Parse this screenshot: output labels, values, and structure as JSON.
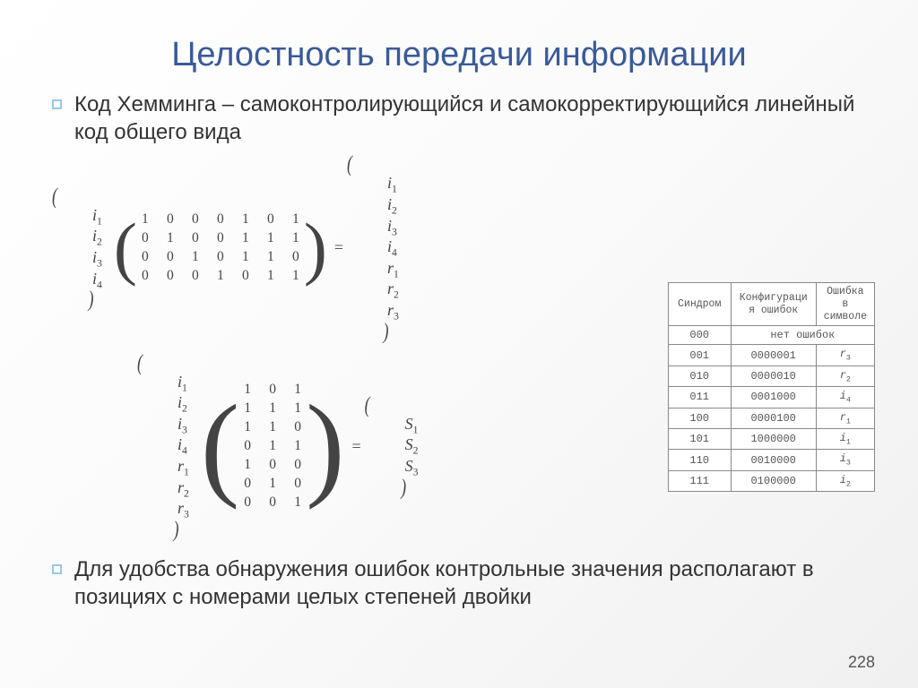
{
  "title": "Целостность передачи информации",
  "bullet1": "Код Хемминга – самоконтролирующийся и самокорректирующийся линейный код общего вида",
  "bullet2": "Для удобства обнаружения ошибок контрольные значения располагают в позициях с номерами целых степеней двойки",
  "page_number": "228",
  "eq1": {
    "left_vec": [
      "i₁",
      "i₂",
      "i₃",
      "i₄"
    ],
    "matrix": {
      "rows": 4,
      "cols": 7,
      "cells": [
        "1",
        "0",
        "0",
        "0",
        "1",
        "0",
        "1",
        "0",
        "1",
        "0",
        "0",
        "1",
        "1",
        "1",
        "0",
        "0",
        "1",
        "0",
        "1",
        "1",
        "0",
        "0",
        "0",
        "0",
        "1",
        "0",
        "1",
        "1"
      ]
    },
    "right_vec": [
      "i₁",
      "i₂",
      "i₃",
      "i₄",
      "r₁",
      "r₂",
      "r₃"
    ]
  },
  "eq2": {
    "left_vec": [
      "i₁",
      "i₂",
      "i₃",
      "i₄",
      "r₁",
      "r₂",
      "r₃"
    ],
    "matrix": {
      "rows": 7,
      "cols": 3,
      "cells": [
        "1",
        "0",
        "1",
        "1",
        "1",
        "1",
        "1",
        "1",
        "0",
        "0",
        "1",
        "1",
        "1",
        "0",
        "0",
        "0",
        "1",
        "0",
        "0",
        "0",
        "1"
      ]
    },
    "right_vec": [
      "S₁",
      "S₂",
      "S₃"
    ]
  },
  "table": {
    "headers": [
      "Синдром",
      "Конфигураци\nя ошибок",
      "Ошибка\nв\nсимволе"
    ],
    "no_err_row": {
      "s": "000",
      "msg": "нет ошибок"
    },
    "rows": [
      {
        "s": "001",
        "cfg": "0000001",
        "sym": "r",
        "sub": "3"
      },
      {
        "s": "010",
        "cfg": "0000010",
        "sym": "r",
        "sub": "2"
      },
      {
        "s": "011",
        "cfg": "0001000",
        "sym": "i",
        "sub": "4"
      },
      {
        "s": "100",
        "cfg": "0000100",
        "sym": "r",
        "sub": "1"
      },
      {
        "s": "101",
        "cfg": "1000000",
        "sym": "i",
        "sub": "1"
      },
      {
        "s": "110",
        "cfg": "0010000",
        "sym": "i",
        "sub": "3"
      },
      {
        "s": "111",
        "cfg": "0100000",
        "sym": "i",
        "sub": "2"
      }
    ]
  },
  "colors": {
    "title": "#3a5a99",
    "bullet_border": "#97c8ea",
    "text": "#333333",
    "table_border": "#888888"
  }
}
